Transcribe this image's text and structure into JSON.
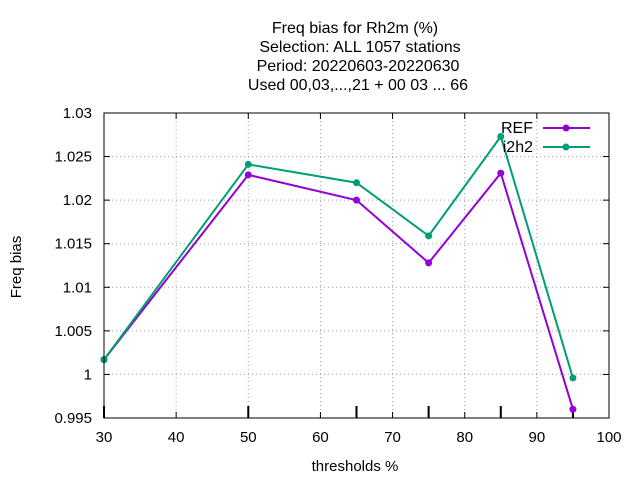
{
  "chart_data": {
    "type": "line",
    "title_lines": [
      "Freq bias  for Rh2m (%)",
      "Selection: ALL   1057 stations",
      "Period: 20220603-20220630",
      "Used  00,03,...,21  + 00 03 ... 66"
    ],
    "xlabel": "thresholds %",
    "ylabel": "Freq bias",
    "xlim": [
      30,
      100
    ],
    "ylim": [
      0.995,
      1.03
    ],
    "x_ticks": [
      30,
      40,
      50,
      60,
      70,
      80,
      90,
      100
    ],
    "y_ticks": [
      0.995,
      1,
      1.005,
      1.01,
      1.015,
      1.02,
      1.025,
      1.03
    ],
    "y_tick_labels": [
      "0.995",
      "1",
      "1.005",
      "1.01",
      "1.015",
      "1.02",
      "1.025",
      "1.03"
    ],
    "grid": true,
    "legend_position": "top-right",
    "x": [
      30,
      50,
      65,
      75,
      85,
      95
    ],
    "series": [
      {
        "name": "REF",
        "color": "#9400d3",
        "values": [
          1.0017,
          1.0229,
          1.02,
          1.0128,
          1.0231,
          0.996
        ]
      },
      {
        "name": "i2h2",
        "color": "#009e73",
        "values": [
          1.0017,
          1.0241,
          1.022,
          1.0159,
          1.0273,
          0.9996
        ]
      }
    ]
  }
}
